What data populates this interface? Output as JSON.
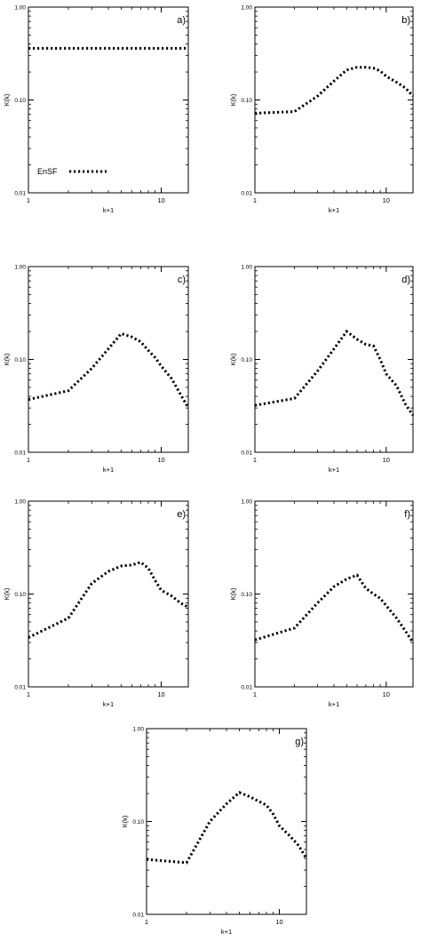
{
  "chart_data": [
    {
      "type": "line",
      "panel_label": "a)",
      "xlabel": "k+1",
      "ylabel": "K(k)",
      "xscale": "log",
      "yscale": "log",
      "xlim": [
        1,
        16
      ],
      "ylim": [
        0.01,
        1.0
      ],
      "x_ticks": [
        "1",
        "10"
      ],
      "y_ticks": [
        "0.01",
        "0.10",
        "1.00"
      ],
      "grid": false,
      "legend": {
        "entries": [
          "EnSF"
        ],
        "placement": "bottom-left"
      },
      "series": [
        {
          "name": "EnSF",
          "x": [
            1,
            2,
            3,
            4,
            5,
            6,
            7,
            8,
            9,
            10,
            12,
            14,
            16
          ],
          "y": [
            0.36,
            0.36,
            0.36,
            0.36,
            0.36,
            0.36,
            0.36,
            0.36,
            0.36,
            0.36,
            0.36,
            0.36,
            0.36
          ]
        }
      ]
    },
    {
      "type": "line",
      "panel_label": "b)",
      "xlabel": "k+1",
      "ylabel": "K(k)",
      "xscale": "log",
      "yscale": "log",
      "xlim": [
        1,
        16
      ],
      "ylim": [
        0.01,
        1.0
      ],
      "x_ticks": [
        "1",
        "10"
      ],
      "y_ticks": [
        "0.01",
        "0.10",
        "1.00"
      ],
      "grid": false,
      "series": [
        {
          "x": [
            1,
            2,
            3,
            4,
            5,
            6,
            7,
            8,
            9,
            10,
            12,
            14,
            16
          ],
          "y": [
            0.072,
            0.075,
            0.11,
            0.16,
            0.21,
            0.225,
            0.225,
            0.22,
            0.205,
            0.18,
            0.155,
            0.135,
            0.11
          ]
        }
      ]
    },
    {
      "type": "line",
      "panel_label": "c)",
      "xlabel": "k+1",
      "ylabel": "K(k)",
      "xscale": "log",
      "yscale": "log",
      "xlim": [
        1,
        16
      ],
      "ylim": [
        0.01,
        1.0
      ],
      "x_ticks": [
        "1",
        "10"
      ],
      "y_ticks": [
        "0.01",
        "0.10",
        "1.00"
      ],
      "grid": false,
      "series": [
        {
          "x": [
            1,
            2,
            3,
            4,
            5,
            6,
            7,
            8,
            9,
            10,
            12,
            14,
            16
          ],
          "y": [
            0.037,
            0.046,
            0.08,
            0.13,
            0.19,
            0.175,
            0.155,
            0.125,
            0.105,
            0.085,
            0.062,
            0.042,
            0.03
          ]
        }
      ]
    },
    {
      "type": "line",
      "panel_label": "d)",
      "xlabel": "k+1",
      "ylabel": "K(k)",
      "xscale": "log",
      "yscale": "log",
      "xlim": [
        1,
        16
      ],
      "ylim": [
        0.01,
        1.0
      ],
      "x_ticks": [
        "1",
        "10"
      ],
      "y_ticks": [
        "0.01",
        "0.10",
        "1.00"
      ],
      "grid": false,
      "series": [
        {
          "x": [
            1,
            2,
            3,
            4,
            5,
            6,
            7,
            8,
            9,
            10,
            12,
            14,
            16
          ],
          "y": [
            0.032,
            0.038,
            0.075,
            0.13,
            0.2,
            0.165,
            0.145,
            0.14,
            0.1,
            0.07,
            0.052,
            0.033,
            0.025
          ]
        }
      ]
    },
    {
      "type": "line",
      "panel_label": "e)",
      "xlabel": "k+1",
      "ylabel": "K(k)",
      "xscale": "log",
      "yscale": "log",
      "xlim": [
        1,
        16
      ],
      "ylim": [
        0.01,
        1.0
      ],
      "x_ticks": [
        "1",
        "10"
      ],
      "y_ticks": [
        "0.01",
        "0.10",
        "1.00"
      ],
      "grid": false,
      "series": [
        {
          "x": [
            1,
            2,
            3,
            4,
            5,
            6,
            7,
            8,
            9,
            10,
            12,
            14,
            16
          ],
          "y": [
            0.034,
            0.055,
            0.13,
            0.175,
            0.2,
            0.205,
            0.22,
            0.19,
            0.14,
            0.11,
            0.095,
            0.08,
            0.072
          ]
        }
      ]
    },
    {
      "type": "line",
      "panel_label": "f)",
      "xlabel": "k+1",
      "ylabel": "K(k)",
      "xscale": "log",
      "yscale": "log",
      "xlim": [
        1,
        16
      ],
      "ylim": [
        0.01,
        1.0
      ],
      "x_ticks": [
        "1",
        "10"
      ],
      "y_ticks": [
        "0.01",
        "0.10",
        "1.00"
      ],
      "grid": false,
      "series": [
        {
          "x": [
            1,
            2,
            3,
            4,
            5,
            6,
            7,
            8,
            9,
            10,
            12,
            14,
            16
          ],
          "y": [
            0.032,
            0.043,
            0.08,
            0.12,
            0.145,
            0.16,
            0.115,
            0.1,
            0.09,
            0.075,
            0.055,
            0.04,
            0.03
          ]
        }
      ]
    },
    {
      "type": "line",
      "panel_label": "g)",
      "xlabel": "k+1",
      "ylabel": "K(k)",
      "xscale": "log",
      "yscale": "log",
      "xlim": [
        1,
        16
      ],
      "ylim": [
        0.01,
        1.0
      ],
      "x_ticks": [
        "1",
        "10"
      ],
      "y_ticks": [
        "0.01",
        "0.10",
        "1.00"
      ],
      "grid": false,
      "series": [
        {
          "x": [
            1,
            2,
            3,
            4,
            5,
            6,
            7,
            8,
            9,
            10,
            12,
            14,
            16
          ],
          "y": [
            0.039,
            0.036,
            0.1,
            0.155,
            0.205,
            0.185,
            0.165,
            0.15,
            0.12,
            0.09,
            0.07,
            0.055,
            0.04
          ]
        }
      ]
    }
  ]
}
